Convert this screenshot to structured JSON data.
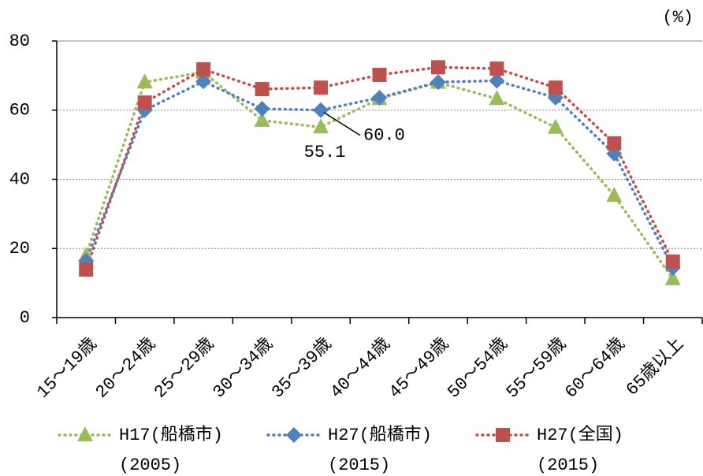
{
  "chart_data": {
    "type": "line",
    "unit_label": "(%)",
    "categories": [
      "15～19歳",
      "20～24歳",
      "25～29歳",
      "30～34歳",
      "35～39歳",
      "40～44歳",
      "45～49歳",
      "50～54歳",
      "55～59歳",
      "60～64歳",
      "65歳以上"
    ],
    "series": [
      {
        "name": "H17(船橋市)",
        "period": "(2005)",
        "color": "#9bbb59",
        "marker": "triangle",
        "values": [
          18,
          68.1,
          71,
          57,
          55.1,
          63.3,
          68,
          63.3,
          55,
          35.3,
          11.2
        ]
      },
      {
        "name": "H27(船橋市)",
        "period": "(2015)",
        "color": "#4f81bd",
        "marker": "diamond",
        "values": [
          16.4,
          60,
          68.3,
          60.4,
          60.0,
          63.6,
          68.1,
          68.5,
          63.6,
          47.4,
          14.4
        ]
      },
      {
        "name": "H27(全国)",
        "period": "(2015)",
        "color": "#c0504d",
        "marker": "square",
        "values": [
          13.9,
          62.2,
          71.8,
          66.1,
          66.5,
          70.2,
          72.4,
          72.0,
          66.5,
          50.4,
          16.2
        ]
      }
    ],
    "annotations": [
      {
        "text": "60.0",
        "series": 1,
        "index": 4
      },
      {
        "text": "55.1",
        "series": 0,
        "index": 4
      }
    ],
    "ylim": [
      0,
      80
    ],
    "yticks": [
      0,
      20,
      40,
      60,
      80
    ],
    "grid": true
  }
}
